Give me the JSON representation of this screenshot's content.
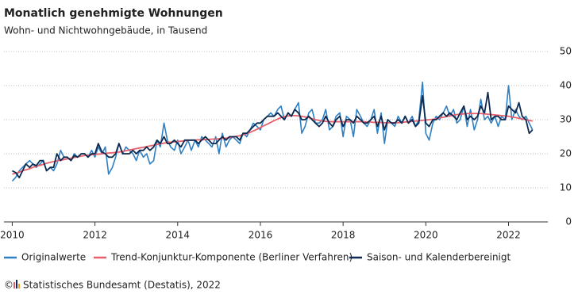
{
  "chart_data": {
    "type": "line",
    "title": "Monatlich genehmigte Wohnungen",
    "subtitle": "Wohn- und Nichtwohngebäude, in Tausend",
    "copyright": "©",
    "source": "Statistisches Bundesamt (Destatis), 2022",
    "xlim": [
      2009.8,
      2022.95
    ],
    "xticks": [
      2010,
      2012,
      2014,
      2016,
      2018,
      2020,
      2022
    ],
    "ylim": [
      0,
      50
    ],
    "yticks": [
      0,
      10,
      20,
      30,
      40,
      50
    ],
    "grid": true,
    "legend": "bottom",
    "x": [
      2010.0,
      2010.08,
      2010.17,
      2010.25,
      2010.33,
      2010.42,
      2010.5,
      2010.58,
      2010.67,
      2010.75,
      2010.83,
      2010.92,
      2011.0,
      2011.08,
      2011.17,
      2011.25,
      2011.33,
      2011.42,
      2011.5,
      2011.58,
      2011.67,
      2011.75,
      2011.83,
      2011.92,
      2012.0,
      2012.08,
      2012.17,
      2012.25,
      2012.33,
      2012.42,
      2012.5,
      2012.58,
      2012.67,
      2012.75,
      2012.83,
      2012.92,
      2013.0,
      2013.08,
      2013.17,
      2013.25,
      2013.33,
      2013.42,
      2013.5,
      2013.58,
      2013.67,
      2013.75,
      2013.83,
      2013.92,
      2014.0,
      2014.08,
      2014.17,
      2014.25,
      2014.33,
      2014.42,
      2014.5,
      2014.58,
      2014.67,
      2014.75,
      2014.83,
      2014.92,
      2015.0,
      2015.08,
      2015.17,
      2015.25,
      2015.33,
      2015.42,
      2015.5,
      2015.58,
      2015.67,
      2015.75,
      2015.83,
      2015.92,
      2016.0,
      2016.08,
      2016.17,
      2016.25,
      2016.33,
      2016.42,
      2016.5,
      2016.58,
      2016.67,
      2016.75,
      2016.83,
      2016.92,
      2017.0,
      2017.08,
      2017.17,
      2017.25,
      2017.33,
      2017.42,
      2017.5,
      2017.58,
      2017.67,
      2017.75,
      2017.83,
      2017.92,
      2018.0,
      2018.08,
      2018.17,
      2018.25,
      2018.33,
      2018.42,
      2018.5,
      2018.58,
      2018.67,
      2018.75,
      2018.83,
      2018.92,
      2019.0,
      2019.08,
      2019.17,
      2019.25,
      2019.33,
      2019.42,
      2019.5,
      2019.58,
      2019.67,
      2019.75,
      2019.83,
      2019.92,
      2020.0,
      2020.08,
      2020.17,
      2020.25,
      2020.33,
      2020.42,
      2020.5,
      2020.58,
      2020.67,
      2020.75,
      2020.83,
      2020.92,
      2021.0,
      2021.08,
      2021.17,
      2021.25,
      2021.33,
      2021.42,
      2021.5,
      2021.58,
      2021.67,
      2021.75,
      2021.83,
      2021.92,
      2022.0,
      2022.08,
      2022.17,
      2022.25,
      2022.33,
      2022.42,
      2022.5,
      2022.58
    ],
    "series": [
      {
        "name": "Originalwerte",
        "color": "#2f80c3",
        "width": 1.6,
        "values": [
          12,
          13,
          15,
          16,
          17,
          18,
          17,
          16,
          17,
          18,
          15,
          16,
          15,
          17,
          21,
          19,
          19,
          18,
          20,
          19,
          20,
          20,
          19,
          21,
          19,
          22,
          20,
          22,
          14,
          16,
          19,
          23,
          20,
          22,
          21,
          20,
          18,
          21,
          19,
          20,
          17,
          18,
          24,
          22,
          29,
          24,
          22,
          21,
          24,
          20,
          22,
          24,
          21,
          24,
          22,
          25,
          24,
          23,
          22,
          25,
          20,
          26,
          22,
          24,
          25,
          24,
          23,
          26,
          25,
          27,
          29,
          28,
          27,
          30,
          31,
          32,
          31,
          33,
          34,
          30,
          32,
          31,
          33,
          35,
          26,
          28,
          32,
          33,
          29,
          29,
          30,
          33,
          27,
          28,
          31,
          32,
          25,
          31,
          30,
          25,
          33,
          31,
          29,
          28,
          30,
          33,
          26,
          32,
          23,
          30,
          29,
          28,
          31,
          29,
          31,
          29,
          31,
          28,
          30,
          41,
          26,
          24,
          29,
          31,
          30,
          32,
          34,
          31,
          33,
          29,
          30,
          34,
          28,
          33,
          27,
          30,
          36,
          30,
          31,
          29,
          31,
          28,
          31,
          30,
          40,
          30,
          33,
          31,
          30,
          31,
          29,
          27
        ]
      },
      {
        "name": "Trend-Konjunktur-Komponente (Berliner Verfahren)",
        "color": "#e8606b",
        "width": 1.8,
        "values": [
          14,
          14.3,
          14.6,
          15,
          15.3,
          15.6,
          16,
          16.3,
          16.6,
          16.9,
          17.2,
          17.5,
          17.7,
          17.9,
          18.1,
          18.3,
          18.5,
          18.7,
          18.9,
          19.1,
          19.3,
          19.5,
          19.6,
          19.7,
          19.8,
          19.9,
          20,
          20.1,
          20.2,
          20.3,
          20.4,
          20.5,
          20.7,
          20.9,
          21.1,
          21.3,
          21.5,
          21.7,
          21.9,
          22.1,
          22.3,
          22.5,
          22.7,
          22.9,
          23.1,
          23.3,
          23.4,
          23.5,
          23.6,
          23.7,
          23.8,
          23.9,
          24,
          24,
          24.1,
          24.1,
          24.2,
          24.2,
          24.3,
          24.3,
          24.4,
          24.5,
          24.6,
          24.7,
          24.9,
          25.1,
          25.3,
          25.6,
          25.9,
          26.3,
          26.7,
          27.2,
          27.7,
          28.2,
          28.7,
          29.2,
          29.7,
          30.2,
          30.6,
          30.9,
          31.1,
          31.2,
          31.2,
          31.1,
          31,
          30.8,
          30.6,
          30.3,
          30,
          29.8,
          29.6,
          29.5,
          29.4,
          29.4,
          29.4,
          29.4,
          29.4,
          29.4,
          29.4,
          29.4,
          29.4,
          29.4,
          29.4,
          29.3,
          29.3,
          29.2,
          29.2,
          29.2,
          29.1,
          29.1,
          29.1,
          29.1,
          29.1,
          29.2,
          29.3,
          29.4,
          29.5,
          29.6,
          29.7,
          29.8,
          29.9,
          30,
          30.1,
          30.3,
          30.5,
          30.7,
          30.9,
          31.1,
          31.3,
          31.5,
          31.6,
          31.7,
          31.8,
          31.8,
          31.8,
          31.8,
          31.8,
          31.7,
          31.6,
          31.5,
          31.4,
          31.3,
          31.2,
          31.1,
          31,
          30.8,
          30.6,
          30.4,
          30.2,
          30,
          29.8,
          29.6
        ]
      },
      {
        "name": "Saison- und Kalenderbereinigt",
        "color": "#0e2a50",
        "width": 1.8,
        "values": [
          15,
          14.5,
          13,
          15,
          17,
          16,
          17,
          16.5,
          18,
          18,
          15,
          16,
          16,
          20,
          18,
          19,
          19,
          18,
          19.5,
          19,
          20,
          20,
          19,
          20,
          20,
          23,
          20.5,
          20,
          19,
          19,
          20,
          23,
          20,
          20,
          20,
          21,
          20,
          21,
          21,
          22,
          21,
          22,
          24,
          23,
          25,
          23,
          23,
          24,
          23,
          22,
          24,
          24,
          24,
          24,
          23,
          24,
          25,
          24,
          23,
          23,
          24,
          25,
          24,
          25,
          25,
          25,
          24,
          26,
          26,
          27,
          28,
          29,
          29,
          30,
          31,
          31,
          31,
          32,
          31,
          30,
          32,
          31,
          33,
          32,
          30,
          30,
          31,
          30,
          29,
          28,
          29,
          31,
          29,
          28,
          30,
          31,
          28,
          30,
          30,
          29,
          31,
          30,
          29,
          29,
          30,
          31,
          28,
          31,
          27,
          30,
          29,
          29,
          30,
          29,
          31,
          29,
          30,
          28,
          29,
          37,
          29,
          28,
          30,
          30,
          31,
          32,
          31,
          32,
          31,
          30,
          32,
          34,
          30,
          31,
          30,
          31,
          34,
          32,
          38,
          30,
          31,
          31,
          30,
          30,
          34,
          33,
          32,
          35,
          31,
          30,
          26,
          27
        ]
      }
    ]
  }
}
